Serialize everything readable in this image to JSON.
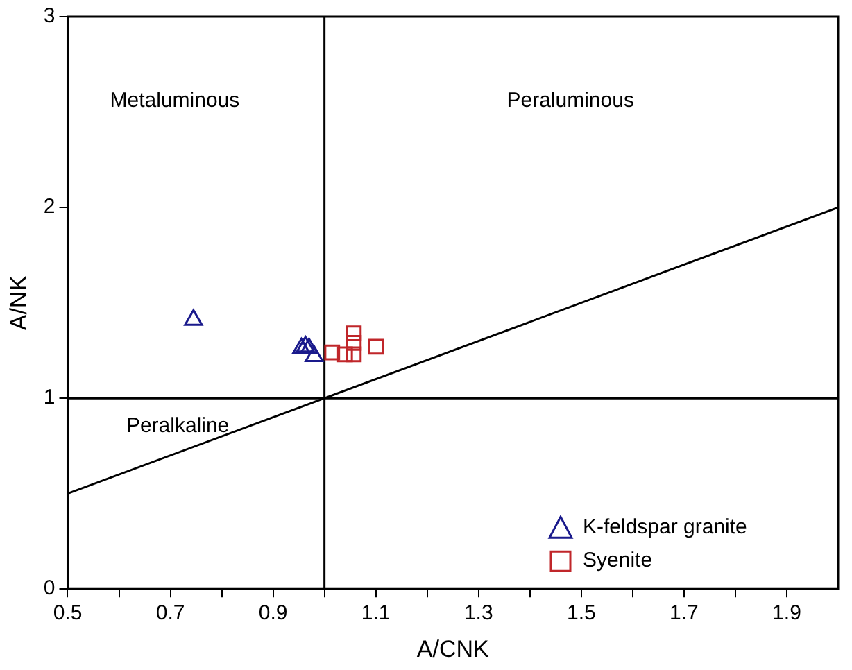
{
  "chart_data": {
    "type": "scatter",
    "xlabel": "A/CNK",
    "ylabel": "A/NK",
    "xlim": [
      0.5,
      2.0
    ],
    "ylim": [
      0,
      3
    ],
    "xticks": [
      0.5,
      {
        "value": 0.6,
        "label": null
      },
      0.7,
      {
        "value": 0.8,
        "label": null
      },
      0.9,
      {
        "value": 1.0,
        "label": null
      },
      1.1,
      {
        "value": 1.2,
        "label": null
      },
      1.3,
      {
        "value": 1.4,
        "label": null
      },
      1.5,
      {
        "value": 1.6,
        "label": null
      },
      1.7,
      {
        "value": 1.8,
        "label": null
      },
      1.9
    ],
    "yticks": [
      0,
      1,
      2,
      3
    ],
    "grid": false,
    "legend": "bottom right",
    "series": [
      {
        "name": "K-feldspar granite",
        "color": "#1a1a8c",
        "marker": "triangle",
        "x": [
          0.745,
          0.955,
          0.963,
          0.97,
          0.98
        ],
        "values": [
          1.41,
          1.26,
          1.27,
          1.26,
          1.22
        ]
      },
      {
        "name": "Syenite",
        "color": "#c0262a",
        "marker": "square",
        "x": [
          1.015,
          1.04,
          1.057,
          1.057,
          1.057,
          1.1
        ],
        "values": [
          1.24,
          1.23,
          1.34,
          1.29,
          1.23,
          1.27
        ]
      },
      {
        "type": "line",
        "color": "#000000",
        "marker": "none",
        "x": [
          0.5,
          2.0
        ],
        "values": [
          0.5,
          2.0
        ]
      },
      {
        "type": "line",
        "color": "#000000",
        "marker": "none",
        "x": [
          1.0,
          1.0
        ],
        "values": [
          0,
          3
        ]
      },
      {
        "type": "line",
        "color": "#000000",
        "marker": "none",
        "x": [
          0.5,
          2.0
        ],
        "values": [
          1,
          1
        ]
      }
    ],
    "annotations": [
      "Metaluminous",
      "Peraluminous",
      "Peralkaline"
    ]
  }
}
